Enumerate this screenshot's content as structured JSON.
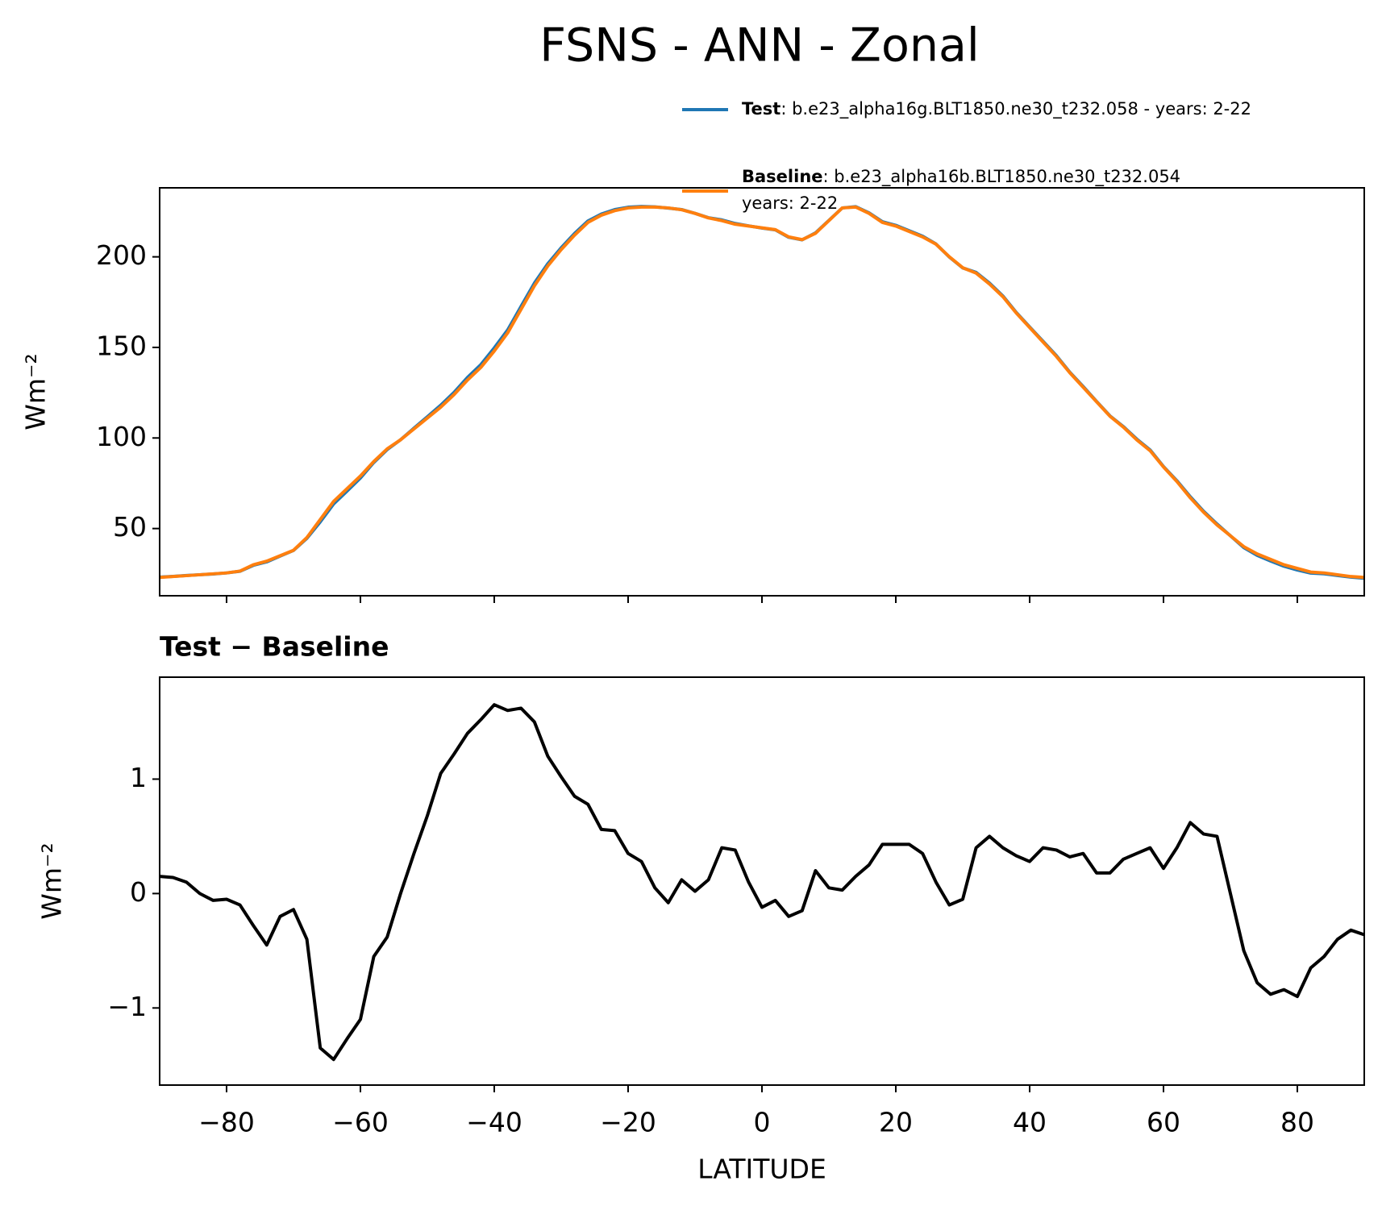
{
  "title": "FSNS - ANN - Zonal",
  "chart_data": [
    {
      "type": "line",
      "ylabel": "Wm⁻²",
      "x": [
        -90,
        -88,
        -86,
        -84,
        -82,
        -80,
        -78,
        -76,
        -74,
        -72,
        -70,
        -68,
        -66,
        -64,
        -62,
        -60,
        -58,
        -56,
        -54,
        -52,
        -50,
        -48,
        -46,
        -44,
        -42,
        -40,
        -38,
        -36,
        -34,
        -32,
        -30,
        -28,
        -26,
        -24,
        -22,
        -20,
        -18,
        -16,
        -14,
        -12,
        -10,
        -8,
        -6,
        -4,
        -2,
        0,
        2,
        4,
        6,
        8,
        10,
        12,
        14,
        16,
        18,
        20,
        22,
        24,
        26,
        28,
        30,
        32,
        34,
        36,
        38,
        40,
        42,
        44,
        46,
        48,
        50,
        52,
        54,
        56,
        58,
        60,
        62,
        64,
        66,
        68,
        70,
        72,
        74,
        76,
        78,
        80,
        82,
        84,
        86,
        88,
        90
      ],
      "series": [
        {
          "name": "Test",
          "description": [
            ": b.e23_alpha16g.BLT1850.ne30_t232.058 - years: 2-22"
          ],
          "color": "#1f77b4",
          "values": [
            23.2,
            23.6,
            24.1,
            24.5,
            24.9,
            25.5,
            26.4,
            29.7,
            31.6,
            34.8,
            37.9,
            44.6,
            53.7,
            63.6,
            70.7,
            77.9,
            86.5,
            93.6,
            99,
            105.4,
            111.7,
            118.1,
            125.2,
            133.4,
            140.5,
            149.7,
            159.6,
            172.6,
            185.5,
            196.2,
            205,
            212.9,
            219.8,
            223.6,
            226.1,
            227.4,
            227.8,
            227.6,
            226.9,
            226.1,
            224,
            221.6,
            220.4,
            218.4,
            217.1,
            215.9,
            214.9,
            210.8,
            209.4,
            213.2,
            220.1,
            227,
            227.7,
            224.3,
            219.4,
            217.4,
            214.4,
            211.4,
            207.1,
            199.9,
            193.9,
            191.4,
            185.5,
            178.4,
            169.3,
            161.3,
            153.4,
            145.4,
            136.3,
            128.4,
            120.2,
            112.2,
            106.3,
            99.4,
            93.4,
            84.2,
            76.4,
            67.6,
            59.5,
            52.5,
            46,
            39.5,
            35.2,
            32.1,
            29.2,
            27.1,
            25.4,
            25,
            24.1,
            23.2,
            22.6
          ]
        },
        {
          "name": "Baseline",
          "description": [
            ": b.e23_alpha16b.BLT1850.ne30_t232.054",
            "years: 2-22"
          ],
          "color": "#ff7f0e",
          "values": [
            23,
            23.5,
            24,
            24.5,
            25,
            25.5,
            26.5,
            30,
            32,
            35,
            38,
            45,
            55,
            65,
            72,
            79,
            87,
            94,
            99,
            105,
            111,
            117,
            124,
            132,
            139,
            148,
            158,
            171,
            184,
            195,
            204,
            212,
            219,
            223,
            225.5,
            227,
            227.5,
            227.5,
            227,
            226,
            224,
            221.5,
            220,
            218,
            217,
            216,
            215,
            211,
            209.5,
            213,
            220,
            227,
            227.5,
            224,
            219,
            217,
            214,
            211,
            207,
            200,
            194,
            191,
            185,
            178,
            169,
            161,
            153,
            145,
            136,
            128,
            120,
            112,
            106,
            99,
            93,
            84,
            76,
            67,
            59,
            52,
            46,
            40,
            36,
            33,
            30,
            28,
            26,
            25.5,
            24.5,
            23.5,
            23
          ]
        }
      ],
      "xlim": [
        -90,
        90
      ],
      "xticks": [
        -80,
        -60,
        -40,
        -20,
        0,
        20,
        40,
        60,
        80
      ],
      "ylim": [
        12.9,
        238.1
      ],
      "yticks": [
        50,
        100,
        150,
        200
      ]
    },
    {
      "type": "line",
      "title": "Test − Baseline",
      "xlabel": "LATITUDE",
      "ylabel": "Wm⁻²",
      "x": [
        -90,
        -88,
        -86,
        -84,
        -82,
        -80,
        -78,
        -76,
        -74,
        -72,
        -70,
        -68,
        -66,
        -64,
        -62,
        -60,
        -58,
        -56,
        -54,
        -52,
        -50,
        -48,
        -46,
        -44,
        -42,
        -40,
        -38,
        -36,
        -34,
        -32,
        -30,
        -28,
        -26,
        -24,
        -22,
        -20,
        -18,
        -16,
        -14,
        -12,
        -10,
        -8,
        -6,
        -4,
        -2,
        0,
        2,
        4,
        6,
        8,
        10,
        12,
        14,
        16,
        18,
        20,
        22,
        24,
        26,
        28,
        30,
        32,
        34,
        36,
        38,
        40,
        42,
        44,
        46,
        48,
        50,
        52,
        54,
        56,
        58,
        60,
        62,
        64,
        66,
        68,
        70,
        72,
        74,
        76,
        78,
        80,
        82,
        84,
        86,
        88,
        90
      ],
      "series": [
        {
          "color": "#000000",
          "values": [
            0.15,
            0.14,
            0.1,
            0,
            -0.06,
            -0.05,
            -0.1,
            -0.28,
            -0.45,
            -0.2,
            -0.14,
            -0.4,
            -1.35,
            -1.45,
            -1.27,
            -1.1,
            -0.55,
            -0.38,
            0,
            0.35,
            0.68,
            1.05,
            1.22,
            1.4,
            1.52,
            1.65,
            1.6,
            1.62,
            1.5,
            1.2,
            1.02,
            0.85,
            0.78,
            0.56,
            0.55,
            0.35,
            0.28,
            0.05,
            -0.08,
            0.12,
            0.02,
            0.12,
            0.4,
            0.38,
            0.1,
            -0.12,
            -0.06,
            -0.2,
            -0.15,
            0.2,
            0.05,
            0.03,
            0.15,
            0.25,
            0.43,
            0.43,
            0.43,
            0.35,
            0.1,
            -0.1,
            -0.05,
            0.4,
            0.5,
            0.4,
            0.33,
            0.28,
            0.4,
            0.38,
            0.32,
            0.35,
            0.18,
            0.18,
            0.3,
            0.35,
            0.4,
            0.22,
            0.4,
            0.62,
            0.52,
            0.5,
            0,
            -0.5,
            -0.78,
            -0.88,
            -0.84,
            -0.9,
            -0.65,
            -0.55,
            -0.4,
            -0.32,
            -0.36
          ]
        }
      ],
      "xlim": [
        -90,
        90
      ],
      "xticks": [
        {
          "value": -80,
          "label": "−80"
        },
        {
          "value": -60,
          "label": "−60"
        },
        {
          "value": -40,
          "label": "−40"
        },
        {
          "value": -20,
          "label": "−20"
        },
        0,
        20,
        40,
        60,
        80
      ],
      "ylim": [
        -1.674,
        1.891
      ],
      "yticks": [
        {
          "value": -1,
          "label": "−1"
        },
        0,
        1
      ]
    }
  ]
}
